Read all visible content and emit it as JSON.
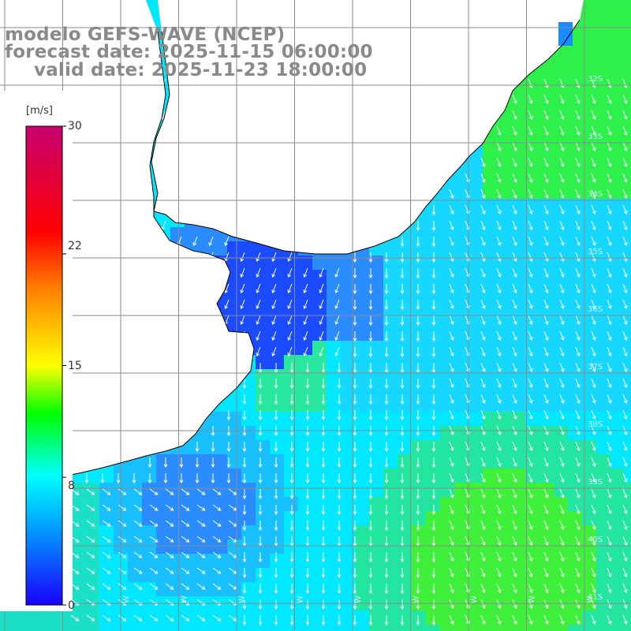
{
  "header": {
    "model_line": "modelo GEFS-WAVE (NCEP)",
    "forecast_line": "forecast date: 2025-11-15 06:00:00",
    "valid_line": "valid date: 2025-11-23 18:00:00"
  },
  "colorbar": {
    "unit": "[m/s]",
    "ticks": [
      "30",
      "22",
      "15",
      "8",
      "0"
    ],
    "tick_values": [
      30,
      22,
      15,
      8,
      0
    ],
    "range": [
      0,
      30
    ],
    "colors": [
      "#1a00ff",
      "#00a6ff",
      "#00ffff",
      "#00ff00",
      "#ffff00",
      "#ff8000",
      "#ff0000",
      "#c80070"
    ]
  },
  "map": {
    "lat_labels": [
      "32S",
      "33S",
      "34S",
      "35S",
      "36S",
      "37S",
      "38S",
      "39S",
      "40S",
      "41S"
    ],
    "lon_labels": [
      "W",
      "W",
      "W",
      "W",
      "W",
      "W",
      "W",
      "W",
      "W",
      "W",
      "W"
    ],
    "field_colors": {
      "deep_blue": "#1a4bff",
      "blue": "#2a8cff",
      "light_blue": "#19c0ff",
      "cyan": "#00ecff",
      "green": "#2ef04a",
      "land": "#ffffff",
      "grid": "#8a8a8a",
      "coast": "#000000",
      "arrow": "#ffffff"
    }
  }
}
